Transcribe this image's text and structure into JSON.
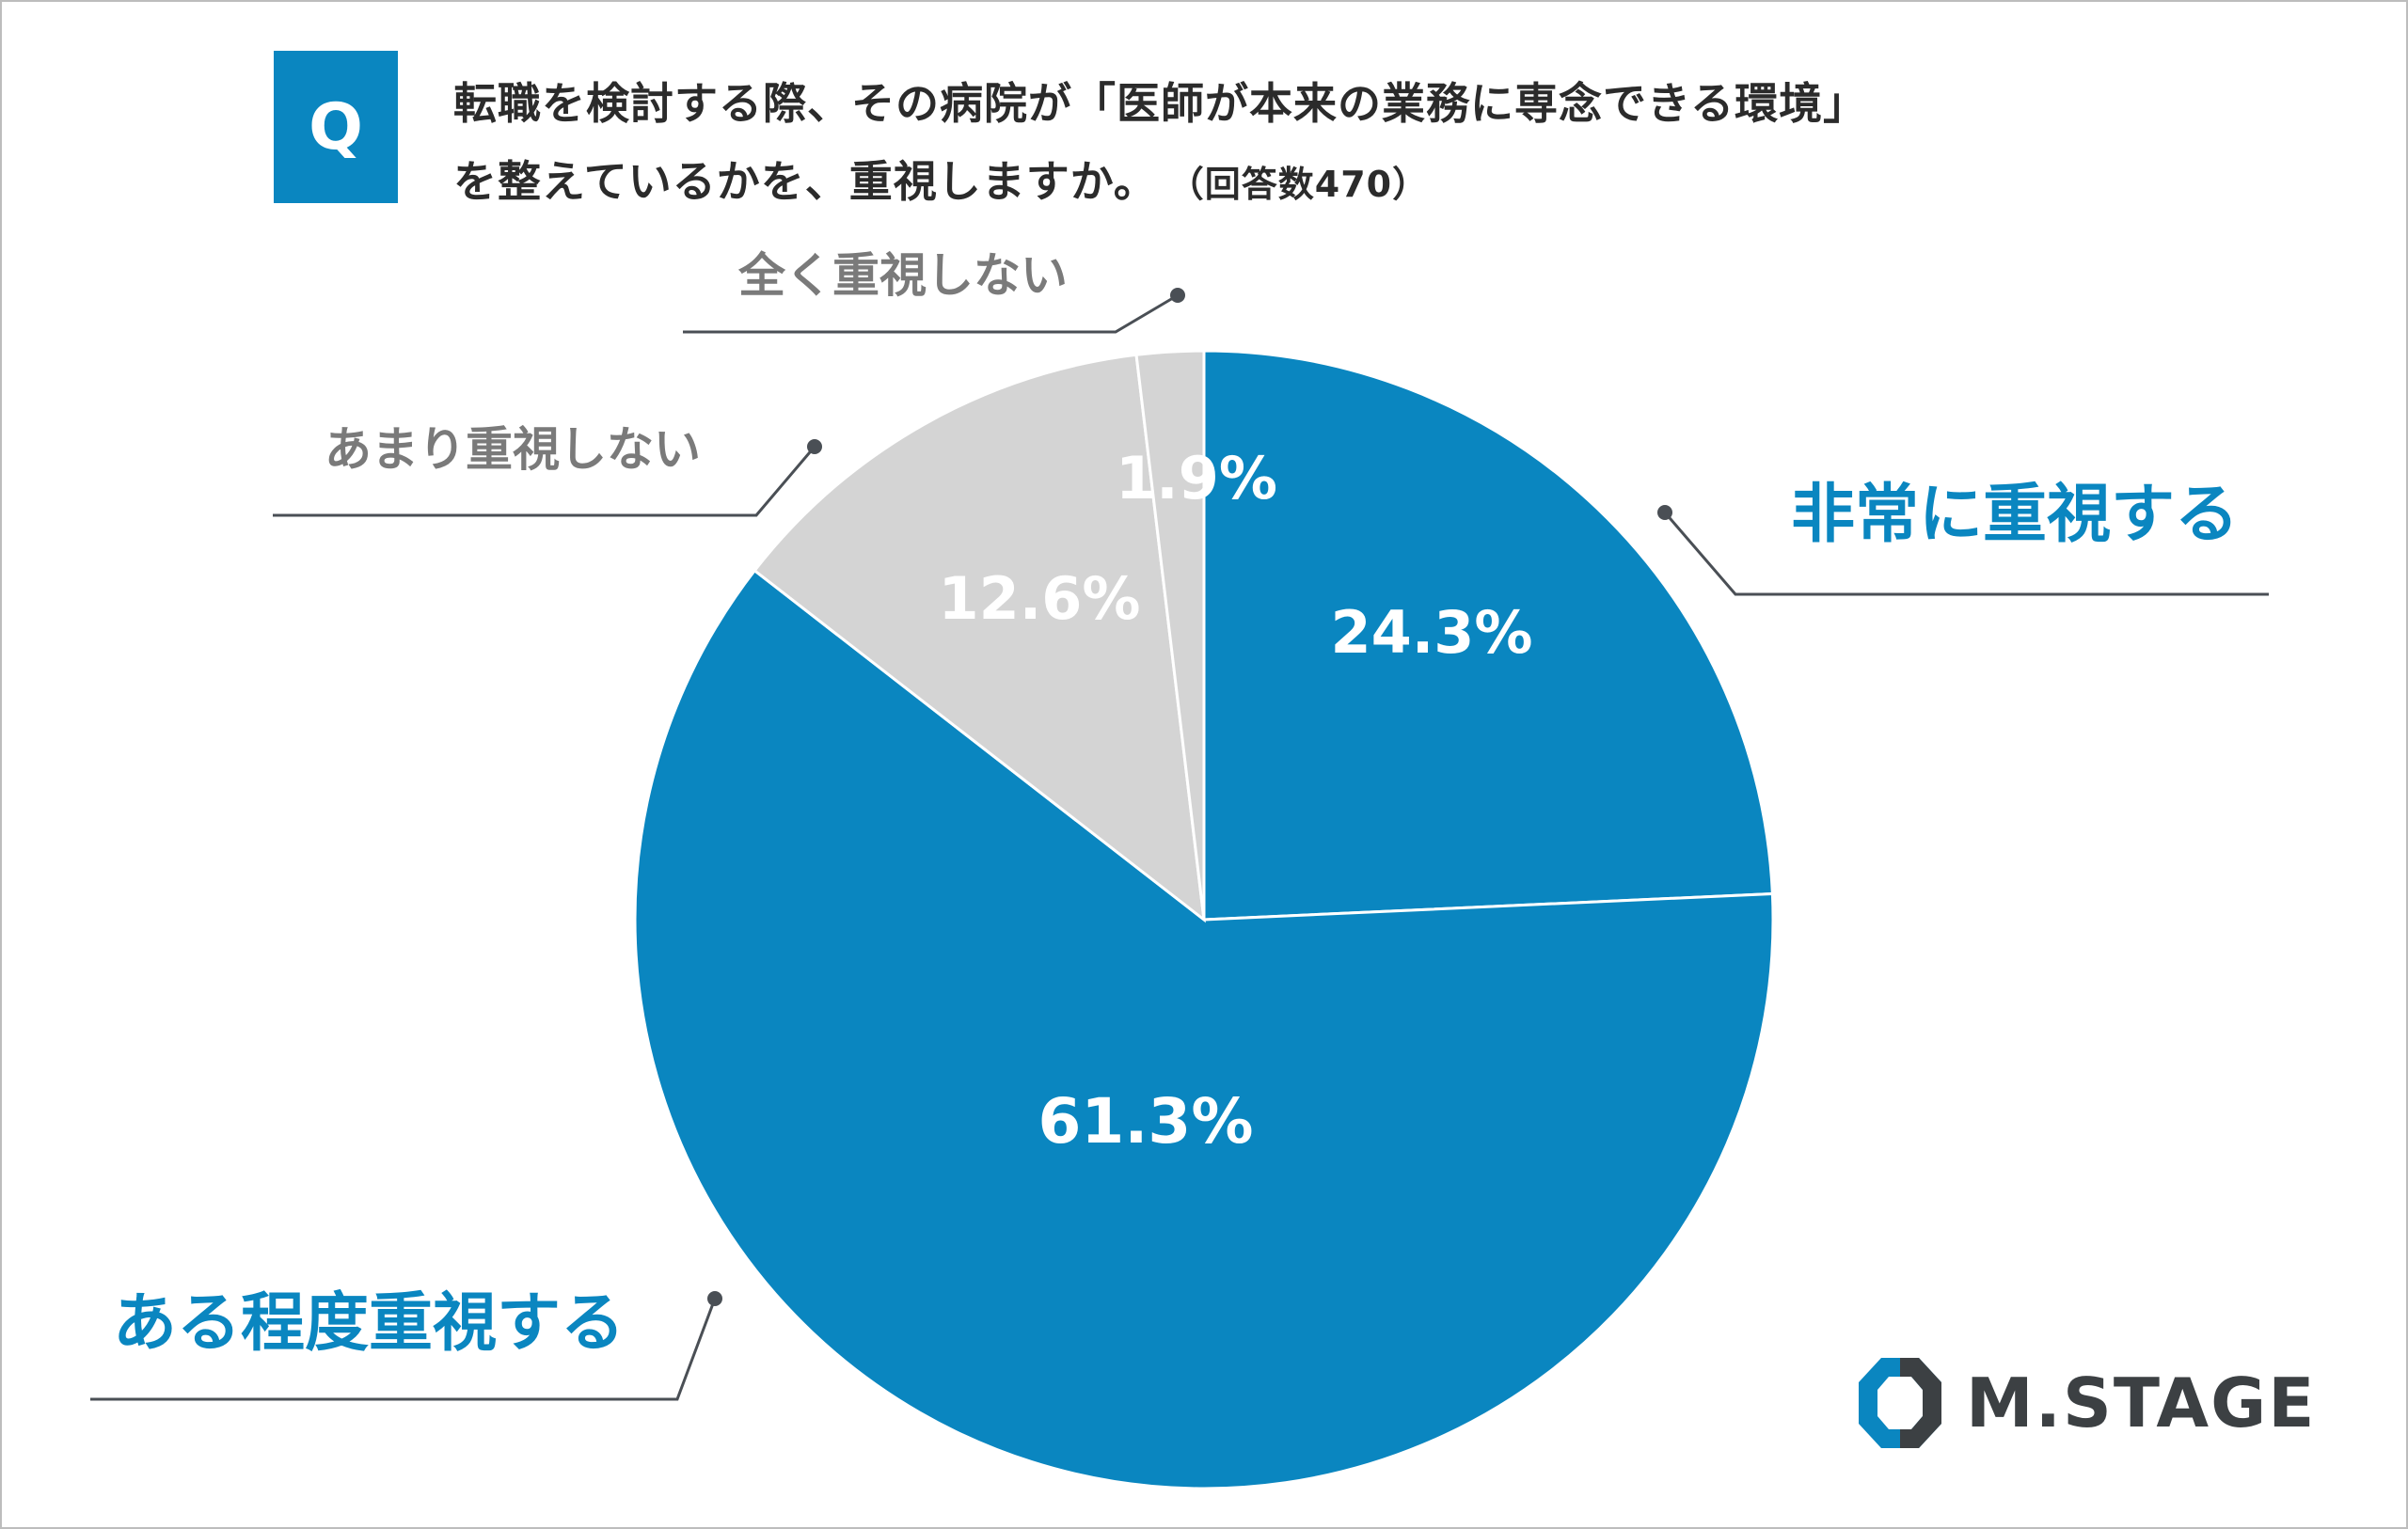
{
  "question": {
    "badge": "Q",
    "line1": "転職を検討する際、その病院が「医師が本来の業務に専念できる環境」",
    "line2": "を整えているかを、重視しますか。",
    "count": "（回答数470）"
  },
  "chart_data": {
    "type": "pie",
    "start_angle_deg": 0,
    "direction": "clockwise",
    "slices": [
      {
        "label": "非常に重視する",
        "value": 24.3,
        "value_label": "24.3%",
        "color": "#0a86c0"
      },
      {
        "label": "ある程度重視する",
        "value": 61.3,
        "value_label": "61.3%",
        "color": "#0a86c0"
      },
      {
        "label": "あまり重視しない",
        "value": 12.6,
        "value_label": "12.6%",
        "color": "#d4d4d4"
      },
      {
        "label": "全く重視しない",
        "value": 1.9,
        "value_label": "1.9%",
        "color": "#d4d4d4"
      }
    ]
  },
  "colors": {
    "accent": "#0a86c0",
    "muted": "#d4d4d4",
    "muted_text": "#7a7a7a",
    "leader": "#4a4f55"
  },
  "logo": {
    "text": "M.STAGE",
    "icon": "m-stage-logo-icon"
  }
}
